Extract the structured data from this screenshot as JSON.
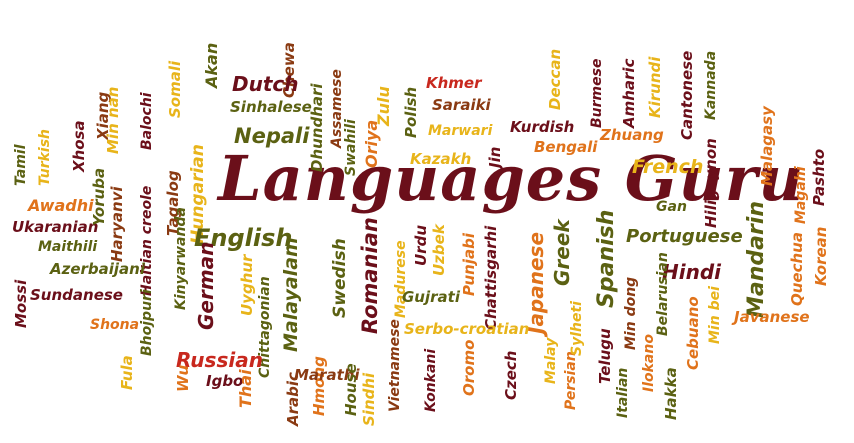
{
  "title": "Languages Guru",
  "colors": {
    "maroon": "#6b0f1a",
    "olive": "#5b6112",
    "orange": "#e0731b",
    "gold": "#e8b41a",
    "red": "#c8281e",
    "brown": "#8a3a12",
    "background": "#ffffff"
  },
  "words": [
    "Tamil",
    "Turkish",
    "Xhosa",
    "Xiang",
    "Min nan",
    "Balochi",
    "Somali",
    "Akan",
    "Chewa",
    "Dutch",
    "Sinhalese",
    "Nepali",
    "Dhundhari",
    "Assamese",
    "Zulu",
    "Oriya",
    "Polish",
    "Khmer",
    "Saraiki",
    "Marwari",
    "Kazakh",
    "Jin",
    "Deccan",
    "Burmese",
    "Amharic",
    "Kirundi",
    "Kurdish",
    "Bengali",
    "Zhuang",
    "Cantonese",
    "Kannada",
    "Malagasy",
    "Magahi",
    "Pashto",
    "French",
    "Hiligaynon",
    "Gan",
    "Awadhi",
    "Ukaranian",
    "Yoruba",
    "Haryanvi",
    "Haitian creole",
    "Tagalog",
    "Hungarian",
    "Maithili",
    "Azerbaijani",
    "Kinyarwanda",
    "Sundanese",
    "Mossi",
    "English",
    "German",
    "Malayalam",
    "Swedish",
    "Romanian",
    "Madurese",
    "Urdu",
    "Uzbek",
    "Punjabi",
    "Chattisgarhi",
    "Japanese",
    "Greek",
    "Spanish",
    "Portuguese",
    "Hindi",
    "Mandarin",
    "Quechua",
    "Korean",
    "Bhojpuri",
    "Uyghur",
    "Chittagonian",
    "Gujrati",
    "Sylheti",
    "Serbo-croatian",
    "Belarusian",
    "Min dong",
    "Cebuano",
    "Min bei",
    "Javanese",
    "Shona",
    "Fula",
    "Russian",
    "Igbo",
    "Wu",
    "Thai",
    "Arabic",
    "Hmong",
    "Marathi",
    "House",
    "Sindhi",
    "Vietnamese",
    "Konkani",
    "Oromo",
    "Czech",
    "Malay",
    "Persian",
    "Telugu",
    "Italian",
    "Ilokano",
    "Hakka",
    "Swahili"
  ]
}
